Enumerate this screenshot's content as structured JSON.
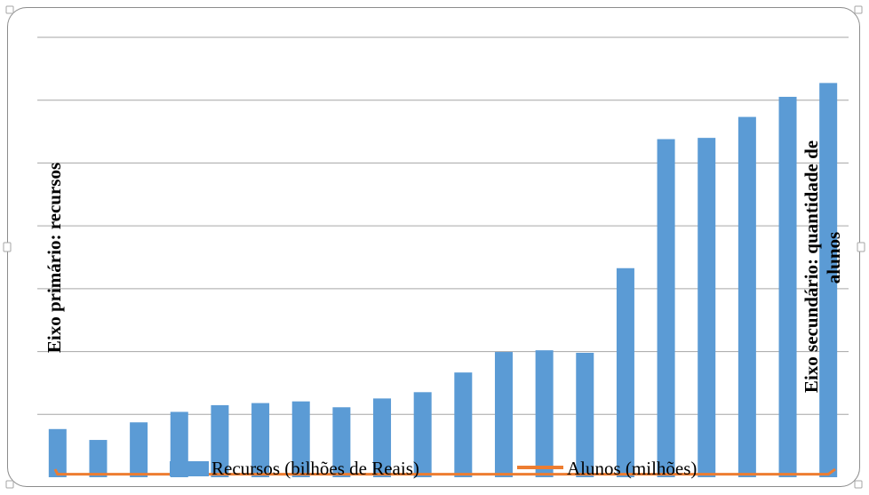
{
  "chart_data": {
    "type": "bar",
    "title": "",
    "ylabel": "Eixo primário: recursos",
    "y2label": [
      "Eixo secundário: quantidade de",
      "alunos"
    ],
    "ylim": [
      0,
      10.5
    ],
    "grid": true,
    "legend_position": "bottom",
    "series": [
      {
        "name": "Recursos (bilhões de Reais)",
        "type": "bar",
        "color": "#5b9bd5",
        "values": [
          1.15,
          0.89,
          1.31,
          1.56,
          1.72,
          1.77,
          1.81,
          1.67,
          1.88,
          2.03,
          2.5,
          2.99,
          3.03,
          2.97,
          4.99,
          8.07,
          8.1,
          8.6,
          9.08,
          9.41
        ]
      },
      {
        "name": "Alunos (milhões)",
        "type": "line",
        "color": "#ed7d31",
        "values": [
          0.03,
          0.03,
          0.03,
          0.03,
          0.03,
          0.03,
          0.03,
          0.03,
          0.03,
          0.03,
          0.03,
          0.03,
          0.03,
          0.03,
          0.03,
          0.03,
          0.03,
          0.03,
          0.03,
          0.03
        ]
      }
    ]
  }
}
